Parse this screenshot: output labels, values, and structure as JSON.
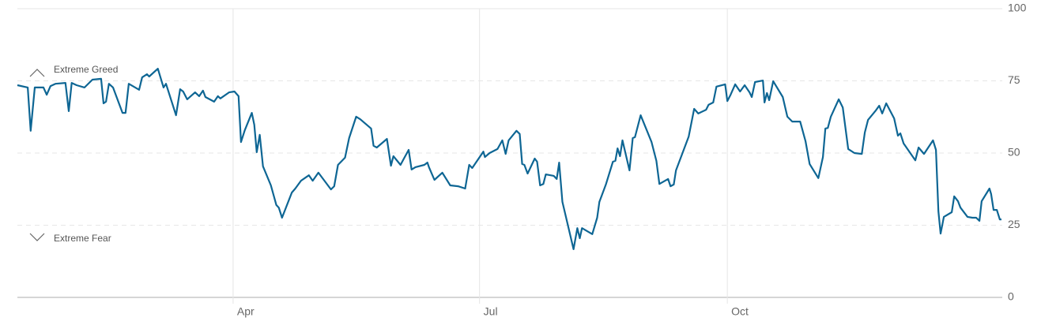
{
  "chart_data": {
    "type": "line",
    "annotations": [
      "Extreme Greed",
      "Extreme Fear"
    ],
    "xlim": [
      0,
      362.5
    ],
    "xticks": [
      {
        "value": 79.4,
        "label": "Apr"
      },
      {
        "value": 170.1,
        "label": "Jul"
      },
      {
        "value": 261.3,
        "label": "Oct"
      }
    ],
    "ylim": [
      0,
      100
    ],
    "yticks": [
      0,
      25,
      50,
      75,
      100
    ],
    "grid": true,
    "series": [
      {
        "name": null,
        "color": "#0e6694",
        "x": [
          0,
          3.8,
          4.9,
          6.4,
          9.6,
          10.8,
          12.2,
          14,
          17.7,
          18.9,
          20,
          21.8,
          24.7,
          27.6,
          30.8,
          31.7,
          32.6,
          33.7,
          35.2,
          38.7,
          39.8,
          41,
          44.8,
          45.9,
          47.7,
          48.5,
          51.7,
          53.8,
          54.7,
          58.4,
          59.9,
          61,
          62.5,
          65.4,
          66.9,
          68.3,
          69.2,
          72.4,
          73.8,
          74.7,
          77.9,
          79.9,
          81.4,
          82.3,
          83.7,
          86.3,
          87.2,
          88.1,
          89.2,
          90.4,
          93.3,
          95.3,
          96.2,
          97.4,
          101,
          102.3,
          104.4,
          107.3,
          108.7,
          110.8,
          115.4,
          116.6,
          118,
          120.6,
          122.1,
          124.7,
          126.2,
          130.2,
          131.1,
          132.3,
          136,
          137.5,
          138.4,
          141,
          144,
          145.1,
          146.5,
          149.8,
          150.9,
          151.5,
          153.5,
          156.4,
          159.3,
          162.2,
          164.8,
          166.3,
          167.4,
          171.5,
          172.1,
          173.8,
          176.7,
          178.5,
          179.7,
          180.8,
          183.7,
          184.9,
          185.8,
          186.6,
          187.8,
          190.4,
          191.3,
          192.4,
          193.6,
          194.5,
          197.4,
          198.5,
          199.4,
          200.6,
          204.7,
          206.1,
          207,
          207.8,
          211.6,
          213.4,
          214.2,
          216.6,
          219.2,
          220.1,
          220.9,
          221.8,
          222.7,
          225.3,
          226.5,
          227.3,
          229.4,
          233.4,
          235.2,
          236.3,
          239.5,
          240.4,
          241.6,
          242.4,
          247.1,
          249.1,
          250.6,
          253.5,
          254.4,
          256.1,
          257.3,
          260.5,
          261.3,
          262.5,
          264.2,
          266,
          267.7,
          269.5,
          270.3,
          271.5,
          274.4,
          275,
          275.9,
          276.7,
          278.2,
          281.7,
          283.4,
          285.2,
          288.1,
          290.1,
          291.6,
          294.8,
          296.5,
          297.4,
          298.3,
          299.4,
          302.3,
          303.8,
          305.8,
          308.1,
          310.8,
          311.9,
          313.1,
          316,
          317.2,
          318.3,
          319.8,
          322.7,
          324.1,
          325,
          326.2,
          330.5,
          331.7,
          333.7,
          337,
          338.1,
          339,
          339.8,
          341,
          343.9,
          344.8,
          346.2,
          347.1,
          349.7,
          351.5,
          352.9,
          354.1,
          354.9,
          357.8,
          358.4,
          359.3,
          360.5,
          361.6,
          362.2
        ],
        "values": [
          73.5,
          72.7,
          57.7,
          72.7,
          72.7,
          70.2,
          73.2,
          74,
          74.3,
          64.5,
          74.3,
          73.5,
          72.7,
          75.4,
          75.7,
          67.2,
          67.8,
          74,
          72.7,
          63.9,
          63.9,
          74,
          71.9,
          76.2,
          77.3,
          76.5,
          79.2,
          72.7,
          74,
          63.1,
          72.1,
          71.3,
          68.6,
          71,
          69.7,
          71.6,
          69.4,
          67.8,
          69.7,
          68.9,
          71,
          71.3,
          69.7,
          53.8,
          57.9,
          63.9,
          59.8,
          50.3,
          56.3,
          45.4,
          38.8,
          32,
          31.1,
          27.6,
          36.3,
          37.7,
          40.4,
          42.3,
          40.4,
          43.2,
          37.4,
          38.5,
          45.9,
          48.4,
          55.2,
          62.6,
          61.7,
          58.5,
          52.5,
          51.9,
          54.9,
          45.6,
          48.9,
          45.9,
          51.1,
          44.3,
          45.1,
          45.9,
          46.7,
          45.1,
          40.7,
          43.2,
          38.8,
          38.5,
          37.7,
          45.9,
          44.8,
          50.5,
          48.6,
          50,
          51.4,
          54.4,
          49.7,
          54.4,
          57.7,
          56.6,
          46.2,
          45.9,
          42.9,
          48.1,
          47,
          38.8,
          39.3,
          42.6,
          42.1,
          41,
          46.7,
          33.1,
          16.7,
          24,
          20.5,
          24,
          21.9,
          27.6,
          33.1,
          39.1,
          47,
          47.3,
          51.6,
          48.9,
          54.4,
          44,
          55.2,
          55.5,
          63.1,
          53.8,
          47.3,
          39.3,
          41,
          38.5,
          39.1,
          44,
          55.7,
          65.3,
          63.7,
          65,
          66.7,
          67.5,
          73,
          73.8,
          68,
          70.2,
          73.8,
          71.3,
          73.5,
          71,
          69.4,
          74.6,
          75.1,
          67.5,
          70.8,
          68.3,
          74.9,
          69.4,
          62.6,
          60.9,
          60.9,
          54.1,
          46.2,
          41.3,
          48.6,
          58.5,
          58.7,
          62.6,
          68.6,
          65.8,
          51.4,
          50,
          49.7,
          57.1,
          61.5,
          64.8,
          66.4,
          63.7,
          67.2,
          62,
          56,
          56.8,
          53.3,
          47.5,
          51.9,
          49.7,
          54.4,
          51.1,
          29.8,
          22.1,
          27.9,
          29.5,
          35,
          33.3,
          31.1,
          27.9,
          27.6,
          27.6,
          26.5,
          33.3,
          37.7,
          35.8,
          30.3,
          30.3,
          27,
          27
        ]
      }
    ]
  }
}
